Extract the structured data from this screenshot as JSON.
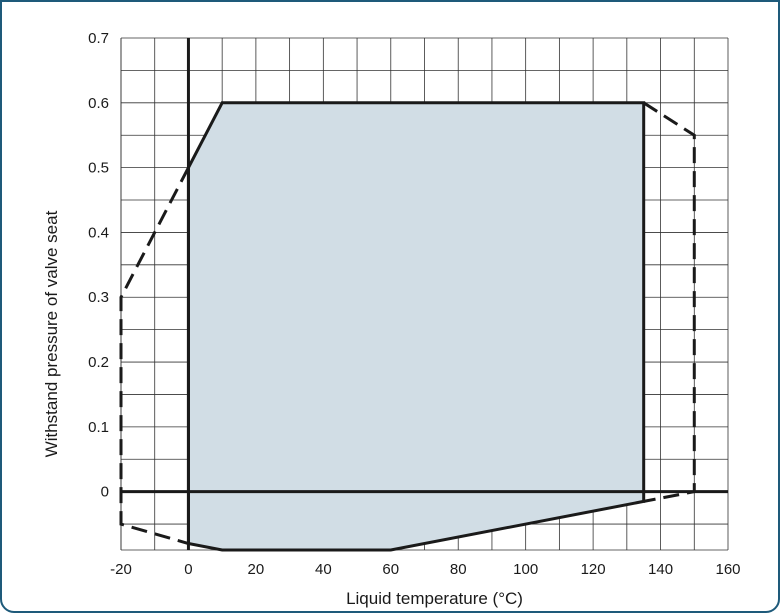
{
  "chart_data": {
    "type": "area",
    "title": "",
    "xlabel": "Liquid temperature (°C)",
    "ylabel": "Withstand pressure of valve seat",
    "xlim": [
      -20,
      160
    ],
    "ylim": [
      -0.09,
      0.7
    ],
    "x_ticks": [
      "-20",
      "0",
      "20",
      "40",
      "60",
      "80",
      "100",
      "120",
      "140",
      "160"
    ],
    "y_ticks": [
      "0",
      "0.1",
      "0.2",
      "0.3",
      "0.4",
      "0.5",
      "0.6",
      "0.7"
    ],
    "grid": true,
    "colors": {
      "fill": "#d1dde5",
      "line": "#1a1a1a",
      "grid": "#333333",
      "frame": "#1e5a7a"
    },
    "series": [
      {
        "style": "solid-filled",
        "x": [
          0,
          10,
          135,
          135,
          60,
          10,
          0,
          0
        ],
        "y": [
          0.5,
          0.6,
          0.6,
          -0.015,
          -0.09,
          -0.09,
          -0.08,
          0.5
        ]
      },
      {
        "style": "dashed",
        "x": [
          0,
          -20,
          -20,
          0
        ],
        "y": [
          0.5,
          0.3,
          -0.05,
          -0.08
        ]
      },
      {
        "style": "dashed",
        "x": [
          135,
          150,
          150,
          135
        ],
        "y": [
          0.6,
          0.55,
          0,
          -0.015
        ]
      }
    ]
  }
}
